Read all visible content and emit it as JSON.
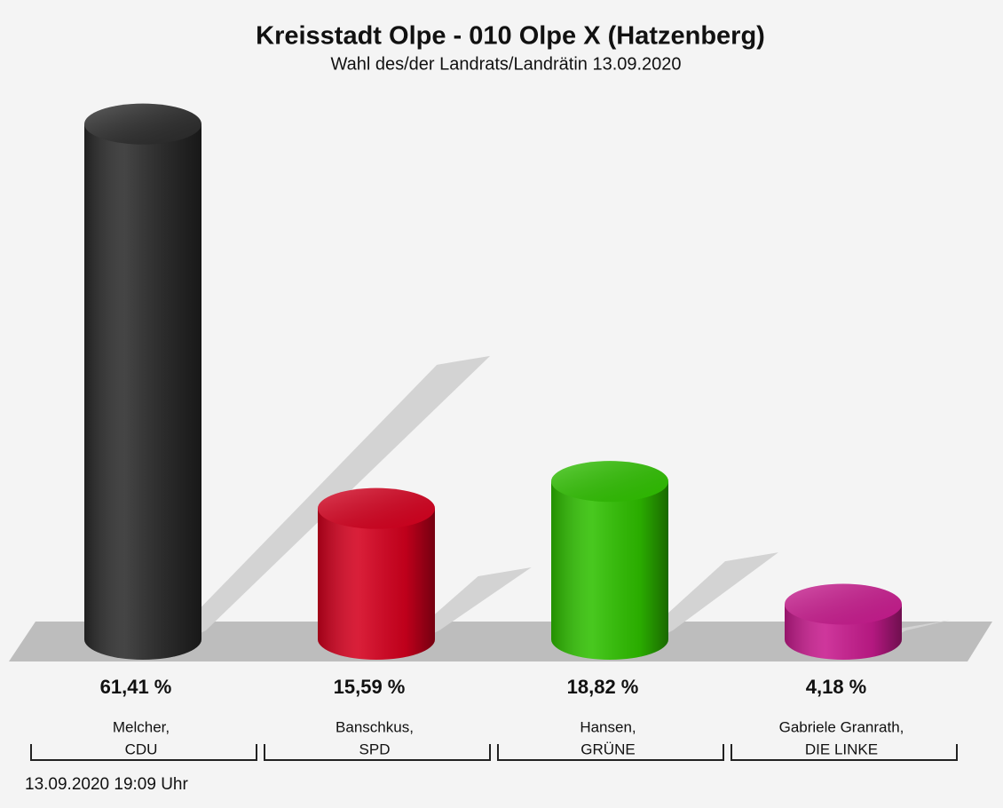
{
  "chart_data": {
    "type": "cylinder-bar",
    "title": "Kreisstadt Olpe - 010 Olpe X (Hatzenberg)",
    "subtitle": "Wahl des/der Landrats/Landrätin 13.09.2020",
    "categories": [
      "Melcher,",
      "Banschkus,",
      "Hansen,",
      "Gabriele Granrath,"
    ],
    "parties": [
      "CDU",
      "SPD",
      "GRÜNE",
      "DIE LINKE"
    ],
    "values": [
      61.41,
      15.59,
      18.82,
      4.18
    ],
    "value_labels": [
      "61,41 %",
      "15,59 %",
      "18,82 %",
      "4,18 %"
    ],
    "colors": [
      "#2b2b2b",
      "#d4001e",
      "#2fc000",
      "#c81b8e"
    ],
    "footer": "13.09.2020 19:09 Uhr"
  }
}
